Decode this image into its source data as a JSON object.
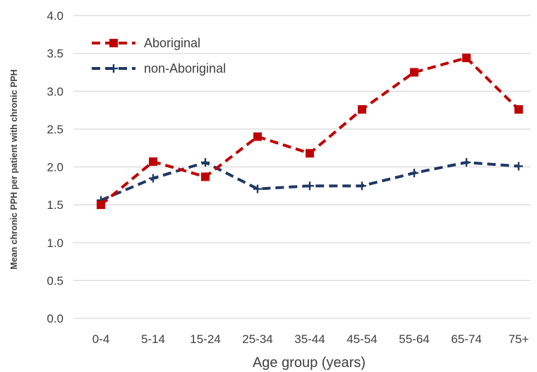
{
  "chart_data": {
    "type": "line",
    "title": "",
    "xlabel": "Age group  (years)",
    "ylabel": "Mean chronic PPH per patient with chronic PPH",
    "categories": [
      "0-4",
      "5-14",
      "15-24",
      "25-34",
      "35-44",
      "45-54",
      "55-64",
      "65-74",
      "75+"
    ],
    "ylim": [
      0,
      4.0
    ],
    "yticks": [
      "0.0",
      "0.5",
      "1.0",
      "1.5",
      "2.0",
      "2.5",
      "3.0",
      "3.5",
      "4.0"
    ],
    "grid": true,
    "legend_position": "top-left",
    "series": [
      {
        "name": "Aboriginal",
        "color": "#c00000",
        "marker": "square",
        "line_style": "dashed",
        "values": [
          1.5,
          2.07,
          1.87,
          2.4,
          2.18,
          2.76,
          3.25,
          3.44,
          2.76
        ]
      },
      {
        "name": "non-Aboriginal",
        "color": "#1f3864",
        "marker": "plus",
        "line_style": "dashed",
        "values": [
          1.56,
          1.85,
          2.06,
          1.71,
          1.75,
          1.75,
          1.92,
          2.06,
          2.01
        ]
      }
    ]
  }
}
